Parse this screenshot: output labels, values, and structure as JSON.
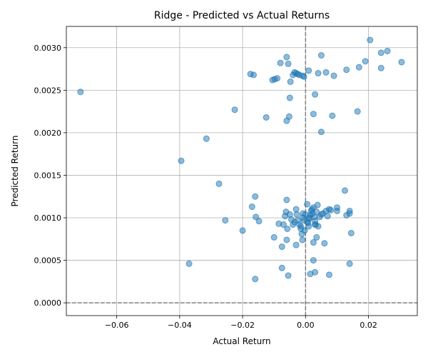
{
  "chart_data": {
    "type": "scatter",
    "title": "Ridge - Predicted vs Actual Returns",
    "xlabel": "Actual Return",
    "ylabel": "Predicted Return",
    "xlim": [
      -0.076,
      0.0355
    ],
    "ylim": [
      -0.00015,
      0.00325
    ],
    "xticks": [
      -0.06,
      -0.04,
      -0.02,
      0.0,
      0.02
    ],
    "xtick_labels": [
      "−0.06",
      "−0.04",
      "−0.02",
      "0.00",
      "0.02"
    ],
    "yticks": [
      0.0,
      0.0005,
      0.001,
      0.0015,
      0.002,
      0.0025,
      0.003
    ],
    "ytick_labels": [
      "0.0000",
      "0.0005",
      "0.0010",
      "0.0015",
      "0.0020",
      "0.0025",
      "0.0030"
    ],
    "grid": true,
    "reference_lines": {
      "vertical_x": 0,
      "horizontal_y": 0,
      "style": "dashed",
      "color": "#808080"
    },
    "marker_color": "#1f77b4",
    "marker_alpha": 0.5,
    "points": [
      [
        -0.0715,
        0.00248
      ],
      [
        -0.0395,
        0.00167
      ],
      [
        -0.037,
        0.00046
      ],
      [
        -0.0315,
        0.00193
      ],
      [
        -0.0275,
        0.0014
      ],
      [
        -0.0255,
        0.00097
      ],
      [
        -0.0225,
        0.00227
      ],
      [
        -0.02,
        0.00085
      ],
      [
        -0.0175,
        0.00269
      ],
      [
        -0.0165,
        0.00268
      ],
      [
        -0.017,
        0.00113
      ],
      [
        -0.016,
        0.00125
      ],
      [
        -0.0158,
        0.00101
      ],
      [
        -0.0148,
        0.00096
      ],
      [
        -0.016,
        0.00028
      ],
      [
        -0.0125,
        0.00218
      ],
      [
        -0.0105,
        0.00262
      ],
      [
        -0.0098,
        0.00263
      ],
      [
        -0.009,
        0.00264
      ],
      [
        -0.01,
        0.00077
      ],
      [
        -0.008,
        0.00282
      ],
      [
        -0.006,
        0.00289
      ],
      [
        -0.0055,
        0.00281
      ],
      [
        -0.006,
        0.00214
      ],
      [
        -0.0052,
        0.00219
      ],
      [
        -0.0048,
        0.0026
      ],
      [
        -0.005,
        0.00241
      ],
      [
        -0.004,
        0.00268
      ],
      [
        -0.0035,
        0.00271
      ],
      [
        -0.003,
        0.0027
      ],
      [
        -0.0025,
        0.00269
      ],
      [
        -0.002,
        0.00268
      ],
      [
        -0.001,
        0.00267
      ],
      [
        -0.0005,
        0.00266
      ],
      [
        0.001,
        0.00273
      ],
      [
        0.004,
        0.0027
      ],
      [
        0.005,
        0.00291
      ],
      [
        0.0065,
        0.00271
      ],
      [
        0.009,
        0.00267
      ],
      [
        0.013,
        0.00274
      ],
      [
        0.017,
        0.00277
      ],
      [
        0.019,
        0.00284
      ],
      [
        0.0205,
        0.00309
      ],
      [
        0.024,
        0.00294
      ],
      [
        0.026,
        0.00296
      ],
      [
        0.024,
        0.00276
      ],
      [
        0.0305,
        0.00283
      ],
      [
        0.003,
        0.00245
      ],
      [
        0.0025,
        0.00222
      ],
      [
        0.0085,
        0.0022
      ],
      [
        0.0165,
        0.00225
      ],
      [
        0.005,
        0.00201
      ],
      [
        0.0125,
        0.00132
      ],
      [
        -0.006,
        0.00121
      ],
      [
        -0.0075,
        0.00066
      ],
      [
        -0.007,
        0.00092
      ],
      [
        -0.0085,
        0.00093
      ],
      [
        -0.0065,
        0.00102
      ],
      [
        -0.0062,
        0.00107
      ],
      [
        -0.0058,
        0.00087
      ],
      [
        -0.005,
        0.00104
      ],
      [
        -0.0045,
        0.00098
      ],
      [
        -0.004,
        0.00092
      ],
      [
        -0.0035,
        0.00095
      ],
      [
        -0.003,
        0.0011
      ],
      [
        -0.0028,
        0.00104
      ],
      [
        -0.0025,
        0.00097
      ],
      [
        -0.002,
        0.00092
      ],
      [
        -0.0015,
        0.00087
      ],
      [
        -0.0012,
        0.00081
      ],
      [
        -0.001,
        0.001
      ],
      [
        -0.0008,
        0.00105
      ],
      [
        -0.0005,
        0.00097
      ],
      [
        0.0,
        0.00104
      ],
      [
        0.0005,
        0.00116
      ],
      [
        0.0008,
        0.00094
      ],
      [
        0.001,
        0.0009
      ],
      [
        0.0012,
        0.00099
      ],
      [
        0.0015,
        0.00103
      ],
      [
        0.0018,
        0.00108
      ],
      [
        0.002,
        0.0011
      ],
      [
        0.0022,
        0.00105
      ],
      [
        0.0025,
        0.00112
      ],
      [
        0.0028,
        0.00101
      ],
      [
        0.003,
        0.00096
      ],
      [
        0.0032,
        0.00092
      ],
      [
        0.0035,
        0.00107
      ],
      [
        0.0038,
        0.00115
      ],
      [
        0.004,
        0.0009
      ],
      [
        0.0045,
        0.00101
      ],
      [
        0.005,
        0.00104
      ],
      [
        0.0055,
        0.00105
      ],
      [
        0.0065,
        0.00108
      ],
      [
        0.007,
        0.00102
      ],
      [
        0.0075,
        0.0011
      ],
      [
        0.008,
        0.00109
      ],
      [
        0.01,
        0.00108
      ],
      [
        0.01,
        0.00112
      ],
      [
        0.013,
        0.00103
      ],
      [
        0.014,
        0.00105
      ],
      [
        0.014,
        0.00108
      ],
      [
        0.0145,
        0.00082
      ],
      [
        0.0035,
        0.00077
      ],
      [
        0.0025,
        0.00071
      ],
      [
        0.006,
        0.0007
      ],
      [
        -0.003,
        0.00068
      ],
      [
        -0.006,
        0.00074
      ],
      [
        -0.001,
        0.00074
      ],
      [
        0.0025,
        0.0005
      ],
      [
        -0.0075,
        0.00041
      ],
      [
        0.003,
        0.00036
      ],
      [
        0.0015,
        0.00034
      ],
      [
        0.0075,
        0.00033
      ],
      [
        -0.0055,
        0.00032
      ],
      [
        0.014,
        0.00046
      ],
      [
        -0.0015,
        0.0009
      ],
      [
        0.0005,
        0.00095
      ],
      [
        -0.0003,
        0.00085
      ],
      [
        0.0012,
        0.001
      ],
      [
        0.003,
        0.00092
      ]
    ]
  }
}
